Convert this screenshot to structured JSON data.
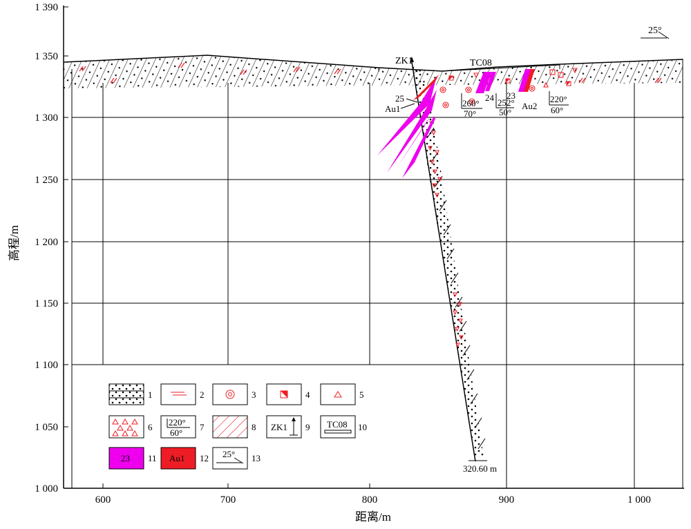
{
  "axes": {
    "y_title": "高程/m",
    "x_title": "距离/m",
    "y_ticks": [
      "1 000",
      "1 050",
      "1 100",
      "1 150",
      "1 200",
      "1 250",
      "1 300",
      "1 350",
      "1 390"
    ],
    "x_ticks": [
      "600",
      "700",
      "800",
      "900",
      "1 000"
    ]
  },
  "dip_indicator": "25°",
  "labels": {
    "drillhole": "ZK1",
    "trench": "TC08",
    "hole_depth": "320.60 m",
    "au1": "Au1",
    "au2": "Au2",
    "orebody_25": "25",
    "orebody_24": "24",
    "orebody_23": "23",
    "attitude_1_az": "260°",
    "attitude_1_dip": "70°",
    "attitude_2_az": "252°",
    "attitude_2_dip": "50°",
    "attitude_3_az": "220°",
    "attitude_3_dip": "60°"
  },
  "legend": {
    "items": [
      {
        "num": "1",
        "symbol": "dotted-sandstone"
      },
      {
        "num": "2",
        "symbol": "red-dash-alteration"
      },
      {
        "num": "3",
        "symbol": "concentric-circle"
      },
      {
        "num": "4",
        "symbol": "half-filled-square"
      },
      {
        "num": "5",
        "symbol": "small-triangle"
      },
      {
        "num": "6",
        "symbol": "triangle-breccia"
      },
      {
        "num": "7",
        "symbol": "attitude",
        "top": "220°",
        "bottom": "60°"
      },
      {
        "num": "8",
        "symbol": "red-diagonal-hatch"
      },
      {
        "num": "9",
        "symbol": "drillhole",
        "text": "ZK1"
      },
      {
        "num": "10",
        "symbol": "trench",
        "text": "TC08"
      },
      {
        "num": "11",
        "symbol": "magenta-orebody",
        "text": "23"
      },
      {
        "num": "12",
        "symbol": "red-orebody",
        "text": "Au1"
      },
      {
        "num": "13",
        "symbol": "dip-sign",
        "text": "25°"
      }
    ]
  },
  "colors": {
    "magenta": "#ee00ee",
    "red": "#ee1c24",
    "black": "#000000"
  }
}
